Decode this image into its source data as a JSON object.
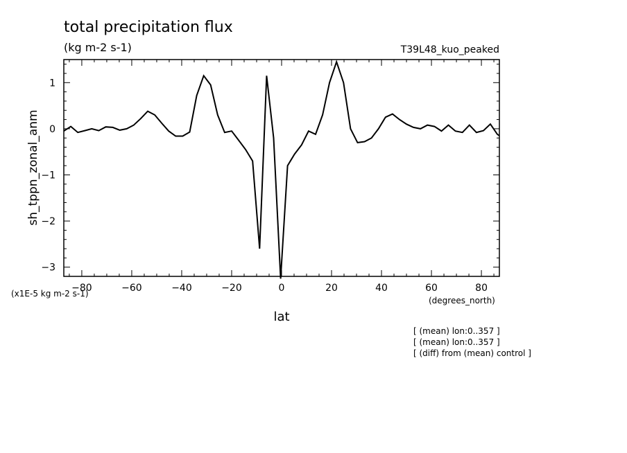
{
  "title": "total precipitation flux",
  "units": "(kg m-2 s-1)",
  "run_label": "T39L48_kuo_peaked",
  "scale_note": "(x1E-5 kg m-2 s-1)",
  "x_unit_label": "(degrees_north)",
  "notes": [
    "[ (mean) lon:0..357 ]",
    "[ (mean) lon:0..357 ]",
    "[ (diff) from (mean) control ]"
  ],
  "chart_data": {
    "type": "line",
    "xlabel": "lat",
    "ylabel": "sh_tppn_zonal_anm",
    "xlim": [
      -87.2,
      87.2
    ],
    "ylim": [
      -3.2,
      1.5
    ],
    "xticks": [
      -80,
      -60,
      -40,
      -20,
      0,
      20,
      40,
      60,
      80
    ],
    "xtick_labels": [
      "-80",
      "-60",
      "-40",
      "-20",
      "0",
      "20",
      "40",
      "60",
      "80"
    ],
    "yticks": [
      1,
      0,
      -1,
      -2,
      -3
    ],
    "ytick_labels": [
      "1",
      "0",
      "-1",
      "-2",
      "-3"
    ],
    "grid": false,
    "series": [
      {
        "x": [
          -87.2,
          -84.4,
          -81.6,
          -78.8,
          -76.0,
          -73.2,
          -70.4,
          -67.6,
          -64.8,
          -62.0,
          -59.2,
          -56.4,
          -53.6,
          -50.8,
          -48.0,
          -45.2,
          -42.4,
          -39.6,
          -36.8,
          -34.0,
          -31.2,
          -28.4,
          -25.6,
          -22.8,
          -20.0,
          -17.2,
          -14.4,
          -11.6,
          -8.8,
          -6.0,
          -3.2,
          -0.4,
          2.4,
          5.2,
          8.0,
          10.8,
          13.6,
          16.4,
          19.2,
          22.0,
          24.8,
          27.6,
          30.4,
          33.2,
          36.0,
          38.8,
          41.6,
          44.4,
          47.2,
          50.0,
          52.8,
          55.6,
          58.4,
          61.2,
          64.0,
          66.8,
          69.6,
          72.4,
          75.2,
          78.0,
          80.8,
          83.6,
          86.4,
          87.2
        ],
        "y": [
          -0.05,
          0.05,
          -0.08,
          -0.04,
          0.0,
          -0.04,
          0.04,
          0.03,
          -0.03,
          0.0,
          0.08,
          0.22,
          0.38,
          0.3,
          0.12,
          -0.05,
          -0.16,
          -0.16,
          -0.07,
          0.72,
          1.15,
          0.95,
          0.3,
          -0.08,
          -0.05,
          -0.25,
          -0.45,
          -0.7,
          -2.6,
          1.15,
          -0.2,
          -3.25,
          -0.8,
          -0.55,
          -0.35,
          -0.05,
          -0.12,
          0.3,
          1.0,
          1.45,
          1.0,
          0.0,
          -0.3,
          -0.28,
          -0.2,
          0.0,
          0.25,
          0.32,
          0.2,
          0.1,
          0.03,
          0.0,
          0.08,
          0.05,
          -0.05,
          0.08,
          -0.05,
          -0.08,
          0.08,
          -0.08,
          -0.04,
          0.1,
          -0.12,
          -0.15
        ]
      }
    ]
  }
}
